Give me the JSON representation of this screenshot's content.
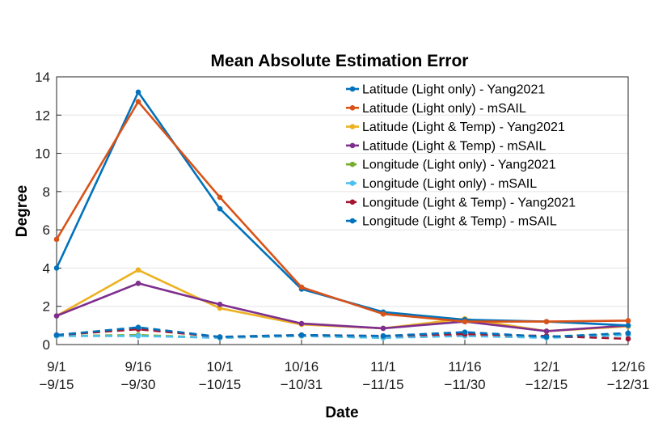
{
  "chart_data": {
    "type": "line",
    "title": "Mean Absolute Estimation Error",
    "xlabel": "Date",
    "ylabel": "Degree",
    "ylim": [
      0,
      14
    ],
    "yticks": [
      "0",
      "2",
      "4",
      "6",
      "8",
      "10",
      "12",
      "14"
    ],
    "categories": [
      [
        "9/1",
        "−9/15"
      ],
      [
        "9/16",
        "−9/30"
      ],
      [
        "10/1",
        "−10/15"
      ],
      [
        "10/16",
        "−10/31"
      ],
      [
        "11/1",
        "−11/15"
      ],
      [
        "11/16",
        "−11/30"
      ],
      [
        "12/1",
        "−12/15"
      ],
      [
        "12/16",
        "−12/31"
      ]
    ],
    "grid": true,
    "legend_position": "top-right",
    "series": [
      {
        "name": "Latitude (Light only) -  Yang2021",
        "color": "#0072BD",
        "dashed": false,
        "values": [
          4.0,
          13.2,
          7.1,
          2.9,
          1.7,
          1.3,
          1.2,
          1.0
        ]
      },
      {
        "name": "Latitude  (Light only) - mSAIL",
        "color": "#D95319",
        "dashed": false,
        "values": [
          5.5,
          12.7,
          7.7,
          3.0,
          1.6,
          1.2,
          1.2,
          1.25
        ]
      },
      {
        "name": "Latitude (Light & Temp) -  Yang2021",
        "color": "#EDB120",
        "dashed": false,
        "values": [
          1.5,
          3.9,
          1.9,
          1.05,
          0.85,
          1.35,
          0.7,
          0.95
        ]
      },
      {
        "name": "Latitude (Light & Temp) - mSAIL",
        "color": "#7E2F8E",
        "dashed": false,
        "values": [
          1.5,
          3.2,
          2.1,
          1.1,
          0.85,
          1.2,
          0.7,
          1.0
        ]
      },
      {
        "name": "Longitude (Light only) -  Yang2021",
        "color": "#77AC30",
        "dashed": true,
        "values": [
          0.45,
          0.5,
          0.35,
          0.45,
          0.35,
          0.5,
          0.4,
          0.55
        ]
      },
      {
        "name": "Longitude (Light only) - mSAIL",
        "color": "#4DBEEE",
        "dashed": true,
        "values": [
          0.45,
          0.45,
          0.35,
          0.45,
          0.35,
          0.45,
          0.35,
          0.5
        ]
      },
      {
        "name": "Longitude (Light & Temp) -  Yang2021",
        "color": "#A2142F",
        "dashed": true,
        "values": [
          0.5,
          0.8,
          0.4,
          0.5,
          0.45,
          0.55,
          0.45,
          0.3
        ]
      },
      {
        "name": "Longitude (Light & Temp) - mSAIL",
        "color": "#0072BD",
        "dashed": true,
        "values": [
          0.5,
          0.9,
          0.4,
          0.5,
          0.45,
          0.65,
          0.4,
          0.6
        ]
      }
    ]
  }
}
